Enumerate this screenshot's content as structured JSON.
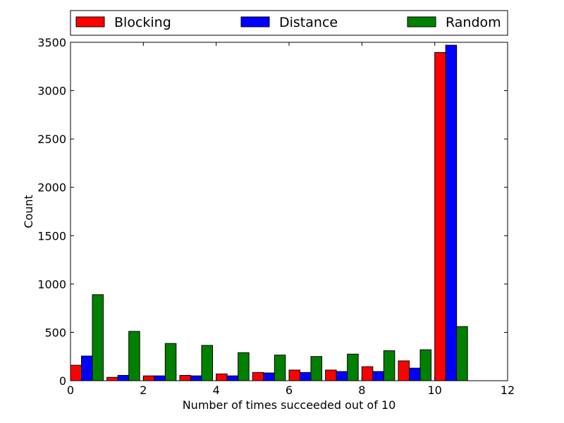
{
  "chart_data": {
    "type": "bar",
    "title": "",
    "xlabel": "Number of times succeeded out of 10",
    "ylabel": "Count",
    "xlim": [
      0,
      12
    ],
    "ylim": [
      0,
      3500
    ],
    "xticks": [
      "0",
      "2",
      "4",
      "6",
      "8",
      "10",
      "12"
    ],
    "yticks": [
      "0",
      "500",
      "1000",
      "1500",
      "2000",
      "2500",
      "3000",
      "3500"
    ],
    "legend_position": "top (above plot)",
    "grid": false,
    "bins": [
      0,
      1,
      2,
      3,
      4,
      5,
      6,
      7,
      8,
      9,
      10
    ],
    "series": [
      {
        "name": "Blocking",
        "color": "#ff0000",
        "values": [
          160,
          35,
          50,
          55,
          70,
          85,
          110,
          110,
          145,
          205,
          3395
        ]
      },
      {
        "name": "Distance",
        "color": "#0000ff",
        "values": [
          255,
          55,
          50,
          50,
          50,
          80,
          85,
          95,
          95,
          130,
          3470
        ]
      },
      {
        "name": "Random",
        "color": "#008000",
        "values": [
          890,
          510,
          385,
          365,
          290,
          265,
          250,
          275,
          310,
          320,
          560
        ]
      }
    ]
  }
}
